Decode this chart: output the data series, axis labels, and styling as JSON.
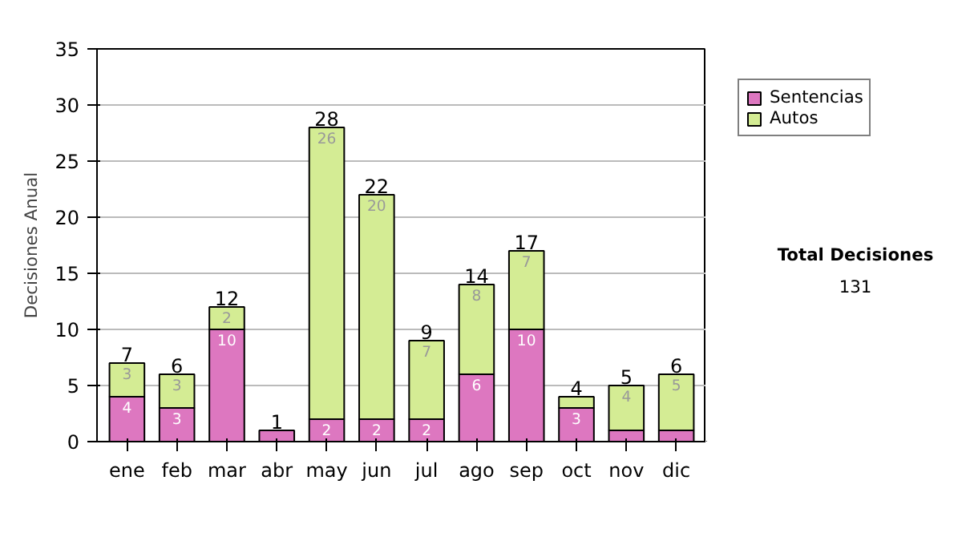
{
  "chart_data": {
    "type": "bar",
    "stacked": true,
    "ylabel": "Decisiones Anual",
    "categories": [
      "ene",
      "feb",
      "mar",
      "abr",
      "may",
      "jun",
      "jul",
      "ago",
      "sep",
      "oct",
      "nov",
      "dic"
    ],
    "series": [
      {
        "name": "Sentencias",
        "color": "#dd77c0",
        "values": [
          4,
          3,
          10,
          1,
          2,
          2,
          2,
          6,
          10,
          3,
          1,
          1
        ],
        "value_labels": [
          "4",
          "3",
          "10",
          null,
          "2",
          "2",
          "2",
          "6",
          "10",
          "3",
          null,
          null
        ]
      },
      {
        "name": "Autos",
        "color": "#d4ec94",
        "values": [
          3,
          3,
          2,
          null,
          26,
          20,
          7,
          8,
          7,
          1,
          4,
          5
        ],
        "value_labels": [
          "3",
          "3",
          "2",
          null,
          "26",
          "20",
          "7",
          "8",
          "7",
          null,
          "4",
          "5"
        ]
      }
    ],
    "totals": [
      "7",
      "6",
      "12",
      "1",
      "28",
      "22",
      "9",
      "14",
      "17",
      "4",
      "5",
      "6"
    ],
    "ylim": [
      0,
      35
    ],
    "yticks": [
      0,
      5,
      10,
      15,
      20,
      25,
      30,
      35
    ],
    "grid": "y",
    "legend": "right",
    "annotations": [
      "Total Decisiones",
      "131"
    ]
  }
}
